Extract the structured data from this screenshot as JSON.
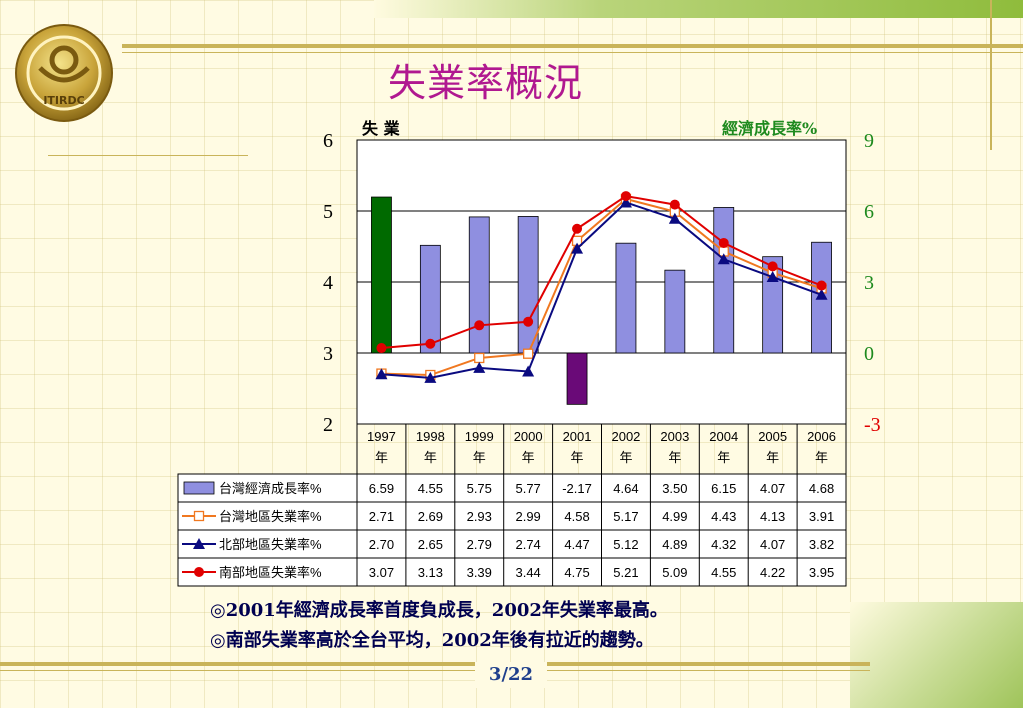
{
  "title": "失業率概況",
  "page_number": "3/22",
  "notes": [
    "◎2001年經濟成長率首度負成長，2002年失業率最高。",
    "◎南部失業率高於全台平均，2002年後有拉近的趨勢。"
  ],
  "colors": {
    "title": "#b01890",
    "bar": "#8f8fe0",
    "bar_negative": "#6a0a78",
    "bar_highlight": "#006a00",
    "taiwan_unemployment": "#f07820",
    "north_unemployment": "#0a0a80",
    "south_unemployment": "#e00000",
    "right_axis": "#1e8a1e",
    "right_axis_negative": "#e00000"
  },
  "chart_data": {
    "type": "bar",
    "left_axis_label": "失 業",
    "right_axis_label": "經濟成長率%",
    "categories": [
      "1997年",
      "1998年",
      "1999年",
      "2000年",
      "2001年",
      "2002年",
      "2003年",
      "2004年",
      "2005年",
      "2006年"
    ],
    "category_years": [
      "1997",
      "1998",
      "1999",
      "2000",
      "2001",
      "2002",
      "2003",
      "2004",
      "2005",
      "2006"
    ],
    "category_suffix": "年",
    "left_ylim": [
      2,
      6
    ],
    "left_ticks": [
      "6",
      "5",
      "4",
      "3",
      "2"
    ],
    "right_ylim": [
      -3,
      9
    ],
    "right_ticks": [
      "9",
      "6",
      "3",
      "0",
      "-3"
    ],
    "series": [
      {
        "name": "台灣經濟成長率%",
        "type": "bar",
        "axis": "right",
        "values": [
          6.59,
          4.55,
          5.75,
          5.77,
          -2.17,
          4.64,
          3.5,
          6.15,
          4.07,
          4.68
        ],
        "labels": [
          "6.59",
          "4.55",
          "5.75",
          "5.77",
          "-2.17",
          "4.64",
          "3.50",
          "6.15",
          "4.07",
          "4.68"
        ]
      },
      {
        "name": "台灣地區失業率%",
        "type": "line",
        "marker": "square",
        "axis": "left",
        "values": [
          2.71,
          2.69,
          2.93,
          2.99,
          4.58,
          5.17,
          4.99,
          4.43,
          4.13,
          3.91
        ],
        "labels": [
          "2.71",
          "2.69",
          "2.93",
          "2.99",
          "4.58",
          "5.17",
          "4.99",
          "4.43",
          "4.13",
          "3.91"
        ]
      },
      {
        "name": "北部地區失業率%",
        "type": "line",
        "marker": "triangle",
        "axis": "left",
        "values": [
          2.7,
          2.65,
          2.79,
          2.74,
          4.47,
          5.12,
          4.89,
          4.32,
          4.07,
          3.82
        ],
        "labels": [
          "2.70",
          "2.65",
          "2.79",
          "2.74",
          "4.47",
          "5.12",
          "4.89",
          "4.32",
          "4.07",
          "3.82"
        ]
      },
      {
        "name": "南部地區失業率%",
        "type": "line",
        "marker": "circle",
        "axis": "left",
        "values": [
          3.07,
          3.13,
          3.39,
          3.44,
          4.75,
          5.21,
          5.09,
          4.55,
          4.22,
          3.95
        ],
        "labels": [
          "3.07",
          "3.13",
          "3.39",
          "3.44",
          "4.75",
          "5.21",
          "5.09",
          "4.55",
          "4.22",
          "3.95"
        ]
      }
    ],
    "grid": true
  },
  "logo": {
    "icon": "itri-emblem-icon",
    "text": "ITIRDC"
  }
}
